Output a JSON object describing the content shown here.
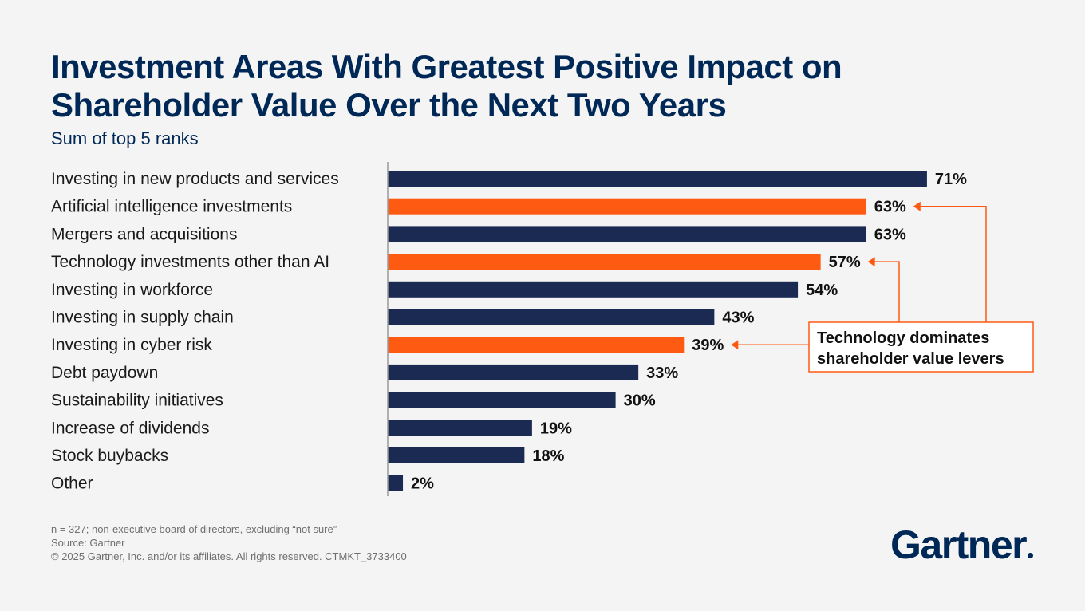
{
  "header": {
    "title": "Investment Areas With Greatest Positive Impact on Shareholder Value Over the Next Two Years",
    "subtitle": "Sum of top 5 ranks"
  },
  "chart_data": {
    "type": "bar",
    "orientation": "horizontal",
    "title": "Investment Areas With Greatest Positive Impact on Shareholder Value Over the Next Two Years",
    "subtitle": "Sum of top 5 ranks",
    "unit": "%",
    "xlim": [
      0,
      100
    ],
    "grid": false,
    "categories": [
      "Investing in new products and services",
      "Artificial intelligence investments",
      "Mergers and acquisitions",
      "Technology investments other than AI",
      "Investing in workforce",
      "Investing in supply chain",
      "Investing in cyber risk",
      "Debt paydown",
      "Sustainability initiatives",
      "Increase of dividends",
      "Stock buybacks",
      "Other"
    ],
    "values": [
      71,
      63,
      63,
      57,
      54,
      43,
      39,
      33,
      30,
      19,
      18,
      2
    ],
    "value_labels": [
      "71%",
      "63%",
      "63%",
      "57%",
      "54%",
      "43%",
      "39%",
      "33%",
      "30%",
      "19%",
      "18%",
      "2%"
    ],
    "highlight": [
      false,
      true,
      false,
      true,
      false,
      false,
      true,
      false,
      false,
      false,
      false,
      false
    ],
    "colors": {
      "default": "#1b2a52",
      "highlight": "#fe5a12"
    },
    "annotation": {
      "text_lines": [
        "Technology dominates",
        "shareholder value levers"
      ],
      "targets": [
        1,
        3,
        6
      ]
    }
  },
  "footnotes": {
    "sample": "n = 327; non-executive board of directors, excluding “not sure”",
    "source": "Source: Gartner",
    "copyright": "© 2025 Gartner, Inc. and/or its affiliates. All rights reserved. CTMKT_3733400"
  },
  "brand": {
    "name": "Gartner",
    "color": "#002856"
  }
}
